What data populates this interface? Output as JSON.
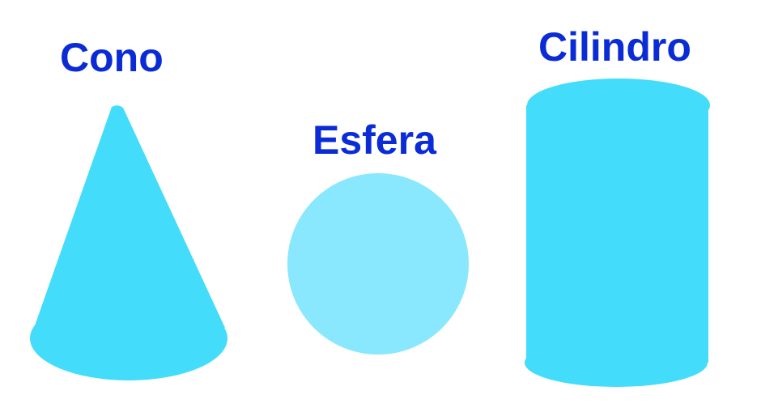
{
  "colors": {
    "label": "#0a2bd6",
    "cone": "#43dcfb",
    "sphere": "#89e8fd",
    "cylinder": "#43dcfb"
  },
  "shapes": {
    "cone": {
      "label": "Cono"
    },
    "sphere": {
      "label": "Esfera"
    },
    "cylinder": {
      "label": "Cilindro"
    }
  }
}
